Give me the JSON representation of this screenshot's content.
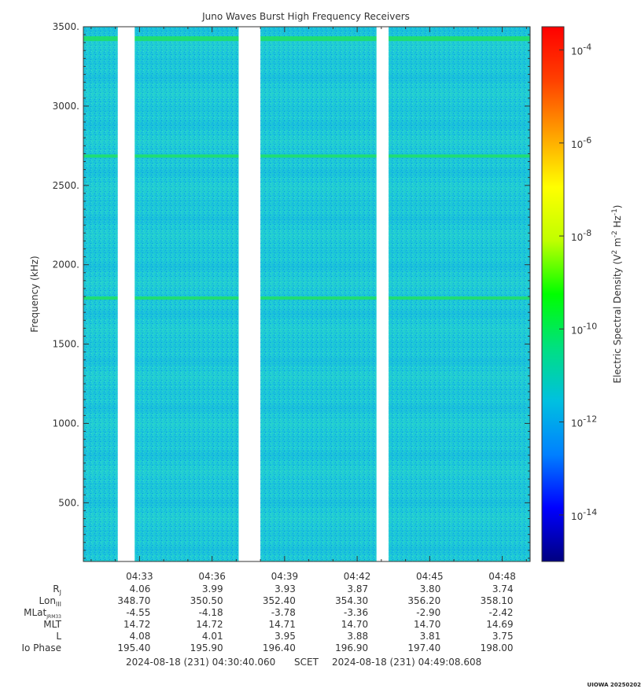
{
  "chart_data": {
    "type": "heatmap",
    "title": "Juno Waves Burst High Frequency Receivers",
    "ylabel": "Frequency (kHz)",
    "colorbar_label": "Electric Spectral Density (V² m⁻² Hz⁻¹)",
    "colorbar_label_parts": {
      "pre": "Electric Spectral Density (V",
      "e1": "2",
      "mid": " m",
      "e2": "-2",
      "mid2": " Hz",
      "e3": "-1",
      "post": ")"
    },
    "ylim": [
      130,
      3500
    ],
    "yticks": [
      500,
      1000,
      1500,
      2000,
      2500,
      3000,
      3500
    ],
    "ytick_labels": [
      "500.",
      "1000.",
      "1500.",
      "2000.",
      "2500.",
      "3000.",
      "3500."
    ],
    "x_range": [
      "04:30:40",
      "04:49:08"
    ],
    "x_tick_labels": [
      "04:33",
      "04:36",
      "04:39",
      "04:42",
      "04:45",
      "04:48"
    ],
    "x_tick_minutes": [
      33,
      36,
      39,
      42,
      45,
      48
    ],
    "x_start_minutes": 30.678,
    "x_end_minutes": 49.152,
    "data_gaps": [
      [
        "04:32:06",
        "04:32:48"
      ],
      [
        "04:37:06",
        "04:38:00"
      ],
      [
        "04:42:48",
        "04:43:18"
      ]
    ],
    "emission_lines_khz": [
      1790,
      2685,
      3430
    ],
    "colorbar": {
      "scale": "log",
      "range": [
        -15,
        -3.5
      ],
      "tick_exponents": [
        -4,
        -6,
        -8,
        -10,
        -12,
        -14
      ],
      "tick_labels": [
        {
          "base": "10",
          "exp": "-4"
        },
        {
          "base": "10",
          "exp": "-6"
        },
        {
          "base": "10",
          "exp": "-8"
        },
        {
          "base": "10",
          "exp": "-10"
        },
        {
          "base": "10",
          "exp": "-12"
        },
        {
          "base": "10",
          "exp": "-14"
        }
      ],
      "colors": [
        "#000080",
        "#0000ff",
        "#0080ff",
        "#00c0e0",
        "#00e080",
        "#00ff00",
        "#c0ff00",
        "#ffff00",
        "#ffa000",
        "#ff4000",
        "#ff0000"
      ]
    },
    "background_level_exp": -12,
    "ephemeris": {
      "rows": [
        {
          "label": "R",
          "sub": "J",
          "values": [
            "4.06",
            "3.99",
            "3.93",
            "3.87",
            "3.80",
            "3.74"
          ]
        },
        {
          "label": "Lon",
          "sub": "III",
          "values": [
            "348.70",
            "350.50",
            "352.40",
            "354.30",
            "356.20",
            "358.10"
          ]
        },
        {
          "label": "MLat",
          "sub": "JRM33",
          "values": [
            "-4.55",
            "-4.18",
            "-3.78",
            "-3.36",
            "-2.90",
            "-2.42"
          ]
        },
        {
          "label": "MLT",
          "sub": "",
          "values": [
            "14.72",
            "14.72",
            "14.71",
            "14.70",
            "14.70",
            "14.69"
          ]
        },
        {
          "label": "L",
          "sub": "",
          "values": [
            "4.08",
            "4.01",
            "3.95",
            "3.88",
            "3.81",
            "3.75"
          ]
        },
        {
          "label": "Io Phase",
          "sub": "",
          "values": [
            "195.40",
            "195.90",
            "196.40",
            "196.90",
            "197.40",
            "198.00"
          ]
        }
      ]
    },
    "footer": {
      "start": "2024-08-18 (231) 04:30:40.060",
      "scet": "SCET",
      "end": "2024-08-18 (231) 04:49:08.608"
    },
    "stamp": "UIOWA 20250202"
  }
}
